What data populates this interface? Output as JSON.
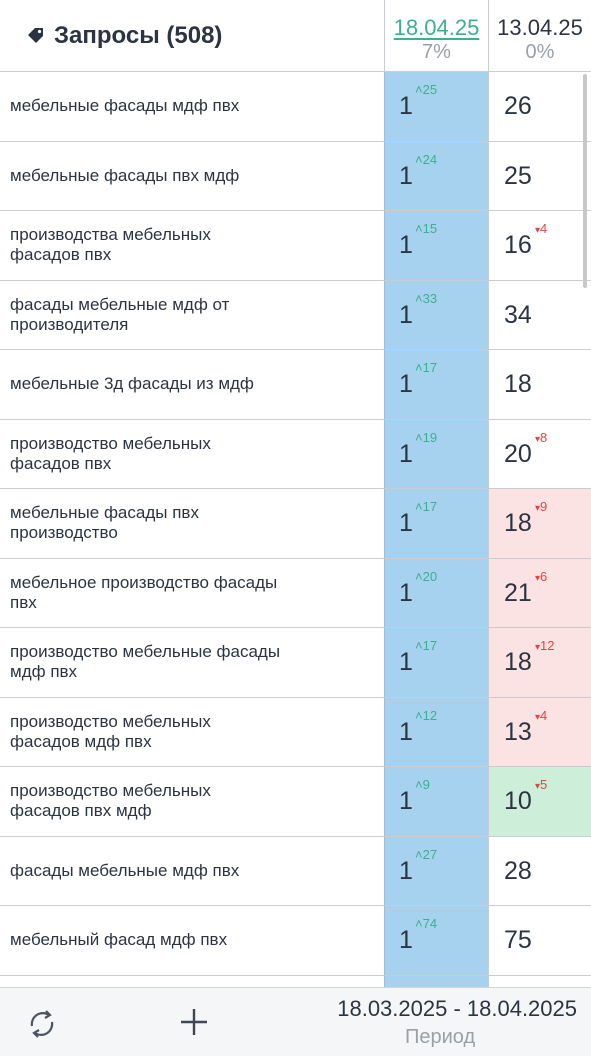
{
  "header": {
    "title": "Запросы (508)",
    "tag_icon": "tag-icon",
    "columns": [
      {
        "date": "18.04.25",
        "pct": "7%",
        "active": true
      },
      {
        "date": "13.04.25",
        "pct": "0%",
        "active": false
      }
    ]
  },
  "rows": [
    {
      "query": "мебельные фасады мдф пвх",
      "pos": "1",
      "pos_delta": "25",
      "prev": "26",
      "prev_delta": "",
      "prev_color": "none"
    },
    {
      "query": "мебельные фасады пвх мдф",
      "pos": "1",
      "pos_delta": "24",
      "prev": "25",
      "prev_delta": "",
      "prev_color": "none"
    },
    {
      "query": "производства мебельных фасадов пвх",
      "pos": "1",
      "pos_delta": "15",
      "prev": "16",
      "prev_delta": "4",
      "prev_color": "none"
    },
    {
      "query": "фасады мебельные мдф от производителя",
      "pos": "1",
      "pos_delta": "33",
      "prev": "34",
      "prev_delta": "",
      "prev_color": "none"
    },
    {
      "query": "мебельные 3д фасады из мдф",
      "pos": "1",
      "pos_delta": "17",
      "prev": "18",
      "prev_delta": "",
      "prev_color": "none"
    },
    {
      "query": "производство мебельных фасадов пвх",
      "pos": "1",
      "pos_delta": "19",
      "prev": "20",
      "prev_delta": "8",
      "prev_color": "none"
    },
    {
      "query": "мебельные фасады пвх производство",
      "pos": "1",
      "pos_delta": "17",
      "prev": "18",
      "prev_delta": "9",
      "prev_color": "red"
    },
    {
      "query": "мебельное производство фасады пвх",
      "pos": "1",
      "pos_delta": "20",
      "prev": "21",
      "prev_delta": "6",
      "prev_color": "red"
    },
    {
      "query": "производство мебельные фасады мдф пвх",
      "pos": "1",
      "pos_delta": "17",
      "prev": "18",
      "prev_delta": "12",
      "prev_color": "red"
    },
    {
      "query": "производство мебельных фасадов мдф пвх",
      "pos": "1",
      "pos_delta": "12",
      "prev": "13",
      "prev_delta": "4",
      "prev_color": "red"
    },
    {
      "query": "производство мебельных фасадов пвх мдф",
      "pos": "1",
      "pos_delta": "9",
      "prev": "10",
      "prev_delta": "5",
      "prev_color": "green"
    },
    {
      "query": "фасады мебельные мдф пвх",
      "pos": "1",
      "pos_delta": "27",
      "prev": "28",
      "prev_delta": "",
      "prev_color": "none"
    },
    {
      "query": "мебельный фасад мдф пвх",
      "pos": "1",
      "pos_delta": "74",
      "prev": "75",
      "prev_delta": "",
      "prev_color": "none"
    },
    {
      "query": "",
      "pos": "",
      "pos_delta": "",
      "prev": "",
      "prev_delta": "",
      "prev_color": "none"
    }
  ],
  "footer": {
    "refresh_icon": "refresh-icon",
    "add_icon": "plus-icon",
    "period_range": "18.03.2025 - 18.04.2025",
    "period_label": "Период"
  },
  "colors": {
    "accent_green": "#3bb08f",
    "decline_red": "#e0453e",
    "current_column_bg": "#a7d2ef",
    "red_cell_bg": "#fbe3e3",
    "green_cell_bg": "#cdeed9"
  }
}
